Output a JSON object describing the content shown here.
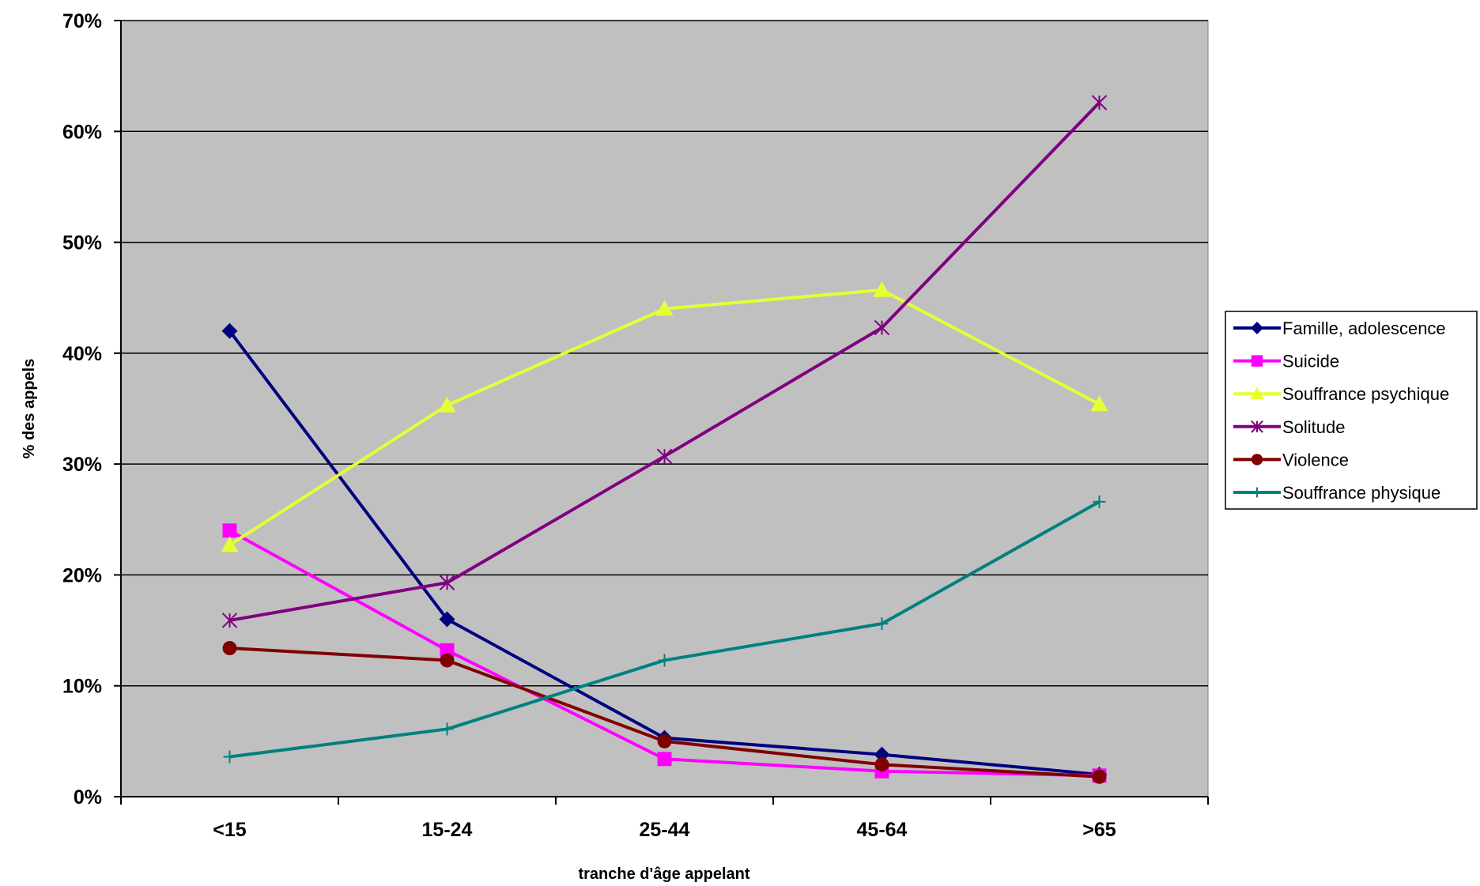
{
  "chart_data": {
    "type": "line",
    "title": "",
    "xlabel": "tranche d'âge appelant",
    "ylabel": "% des appels",
    "categories": [
      "<15",
      "15-24",
      "25-44",
      "45-64",
      ">65"
    ],
    "ylim": [
      0,
      70
    ],
    "yticks": [
      0,
      10,
      20,
      30,
      40,
      50,
      60,
      70
    ],
    "ytick_labels": [
      "0%",
      "10%",
      "20%",
      "30%",
      "40%",
      "50%",
      "60%",
      "70%"
    ],
    "grid": true,
    "plot_background": "#c0c0c0",
    "legend_position": "right",
    "series": [
      {
        "name": "Famille, adolescence",
        "color": "#000080",
        "marker": "diamond",
        "values": [
          42.0,
          16.0,
          5.3,
          3.8,
          2.0
        ]
      },
      {
        "name": "Suicide",
        "color": "#ff00ff",
        "marker": "square",
        "values": [
          24.0,
          13.2,
          3.4,
          2.3,
          1.9
        ]
      },
      {
        "name": "Souffrance psychique",
        "color": "#e6ff33",
        "marker": "triangle",
        "values": [
          22.7,
          35.3,
          44.0,
          45.7,
          35.4
        ]
      },
      {
        "name": "Solitude",
        "color": "#800080",
        "marker": "asterisk",
        "values": [
          15.9,
          19.3,
          30.7,
          42.3,
          62.6
        ]
      },
      {
        "name": "Violence",
        "color": "#800000",
        "marker": "circle",
        "values": [
          13.4,
          12.3,
          5.0,
          2.9,
          1.8
        ]
      },
      {
        "name": "Souffrance physique",
        "color": "#008080",
        "marker": "plus",
        "values": [
          3.6,
          6.1,
          12.3,
          15.6,
          26.6
        ]
      }
    ]
  }
}
